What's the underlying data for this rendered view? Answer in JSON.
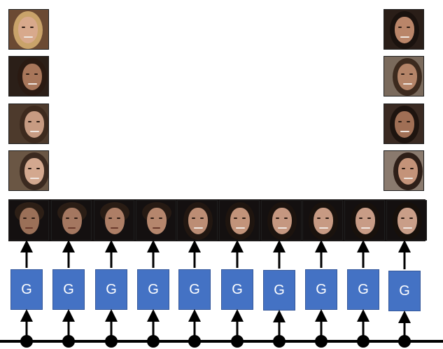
{
  "generator_label": "G",
  "colors": {
    "generator_fill": "#4472c4",
    "generator_text": "#ffffff",
    "arrow": "#000000",
    "background": "#ffffff"
  },
  "left_samples": [
    {
      "skin": "#d8a98c",
      "hair": "#c9a36a",
      "bg": "#6b4a33",
      "turn": -2
    },
    {
      "skin": "#a8765a",
      "hair": "#2a1a12",
      "bg": "#2b1f18",
      "turn": 4
    },
    {
      "skin": "#c79b82",
      "hair": "#3d2a1e",
      "bg": "#4d3a2c",
      "turn": 7
    },
    {
      "skin": "#d3a88f",
      "hair": "#3b2a20",
      "bg": "#6a5644",
      "turn": 7
    }
  ],
  "right_samples": [
    {
      "skin": "#b98569",
      "hair": "#1a120e",
      "bg": "#2a1e18",
      "turn": 0
    },
    {
      "skin": "#b48468",
      "hair": "#3c2a1e",
      "bg": "#7a6a5c",
      "turn": 4
    },
    {
      "skin": "#a06f55",
      "hair": "#1e140f",
      "bg": "#3a2a22",
      "turn": 0
    },
    {
      "skin": "#c49379",
      "hair": "#2e1f18",
      "bg": "#8a7a6e",
      "turn": 5
    }
  ],
  "interpolation": [
    {
      "skin": "#9b7058",
      "hair": "#2d1f16",
      "bg": "#141010",
      "male": true
    },
    {
      "skin": "#a47760",
      "hair": "#2a1d15",
      "bg": "#141010",
      "male": true
    },
    {
      "skin": "#ad7e66",
      "hair": "#291c14",
      "bg": "#141010",
      "male": true
    },
    {
      "skin": "#b5866d",
      "hair": "#261a13",
      "bg": "#141010",
      "male": true
    },
    {
      "skin": "#bc8d74",
      "hair": "#221711",
      "bg": "#141010",
      "male": false
    },
    {
      "skin": "#c2937a",
      "hair": "#1f150f",
      "bg": "#141010",
      "male": false
    },
    {
      "skin": "#c59780",
      "hair": "#1c130e",
      "bg": "#141010",
      "male": false
    },
    {
      "skin": "#c79a83",
      "hair": "#1a120d",
      "bg": "#141010",
      "male": false
    },
    {
      "skin": "#c89c86",
      "hair": "#18110c",
      "bg": "#141010",
      "male": false
    },
    {
      "skin": "#c99e88",
      "hair": "#17100b",
      "bg": "#141010",
      "male": false
    }
  ]
}
